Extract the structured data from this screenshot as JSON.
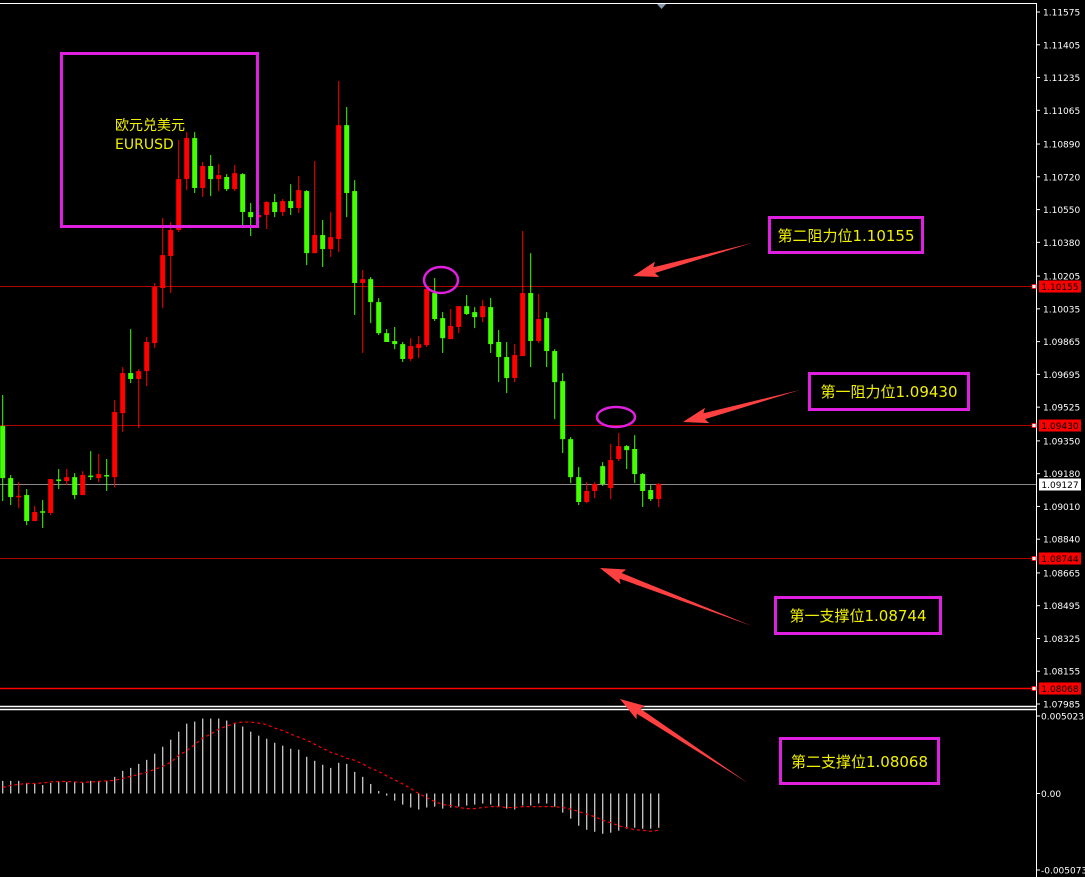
{
  "chart_data": {
    "type": "candlestick",
    "symbol_title": "欧元兑美元",
    "symbol": "EURUSD",
    "colors": {
      "up": "#ff0000",
      "down": "#44ff00",
      "background": "#000000",
      "annotation_box": "#e020e0",
      "annotation_text": "#f0f000",
      "arrow": "#ff4040",
      "macd_histogram": "#c8c8c8",
      "macd_signal": "#ff0000"
    },
    "ylim": [
      1.07985,
      1.11575
    ],
    "y_ticks": [
      "1.11575",
      "1.11405",
      "1.11235",
      "1.11065",
      "1.10890",
      "1.10720",
      "1.10550",
      "1.10380",
      "1.10205",
      "1.10035",
      "1.09865",
      "1.09695",
      "1.09525",
      "1.09350",
      "1.09180",
      "1.09010",
      "1.08840",
      "1.08665",
      "1.08495",
      "1.08325",
      "1.08155",
      "1.07985"
    ],
    "current_price": "1.09127",
    "levels": [
      {
        "price": "1.10155",
        "label": "第二阻力位1.10155"
      },
      {
        "price": "1.09430",
        "label": "第一阻力位1.09430"
      },
      {
        "price": "1.08744",
        "label": "第一支撑位1.08744"
      },
      {
        "price": "1.08068",
        "label": "第二支撑位1.08068"
      }
    ],
    "ohlc_fields": [
      "open",
      "high",
      "low",
      "close"
    ],
    "candles": [
      [
        1.09427,
        1.09588,
        1.09038,
        1.09157
      ],
      [
        1.09157,
        1.09173,
        1.09017,
        1.09059
      ],
      [
        1.09059,
        1.09136,
        1.09001,
        1.09065
      ],
      [
        1.09069,
        1.091,
        1.08913,
        1.08934
      ],
      [
        1.08934,
        1.09012,
        1.08934,
        1.08981
      ],
      [
        1.08985,
        1.09043,
        1.08898,
        1.08981
      ],
      [
        1.08976,
        1.09152,
        1.08965,
        1.09152
      ],
      [
        1.0915,
        1.09204,
        1.091,
        1.09147
      ],
      [
        1.09142,
        1.09204,
        1.09121,
        1.09162
      ],
      [
        1.09162,
        1.09183,
        1.09048,
        1.09069
      ],
      [
        1.09069,
        1.09193,
        1.09069,
        1.09173
      ],
      [
        1.0917,
        1.09297,
        1.09147,
        1.09168
      ],
      [
        1.09157,
        1.09282,
        1.09136,
        1.09178
      ],
      [
        1.09173,
        1.09256,
        1.0909,
        1.09168
      ],
      [
        1.09162,
        1.09562,
        1.0911,
        1.095
      ],
      [
        1.09494,
        1.09733,
        1.09396,
        1.09702
      ],
      [
        1.09702,
        1.0993,
        1.0965,
        1.09671
      ],
      [
        1.09671,
        1.09723,
        1.09417,
        1.09712
      ],
      [
        1.09712,
        1.09889,
        1.09634,
        1.09863
      ],
      [
        1.09857,
        1.10169,
        1.09832,
        1.10148
      ],
      [
        1.10143,
        1.10506,
        1.10039,
        1.10314
      ],
      [
        1.10309,
        1.10485,
        1.10117,
        1.10444
      ],
      [
        1.10444,
        1.10911,
        1.10433,
        1.10708
      ],
      [
        1.10708,
        1.10952,
        1.10651,
        1.10921
      ],
      [
        1.10921,
        1.10952,
        1.10636,
        1.10662
      ],
      [
        1.10662,
        1.10797,
        1.10615,
        1.10776
      ],
      [
        1.10776,
        1.10833,
        1.1062,
        1.10708
      ],
      [
        1.10708,
        1.10786,
        1.10646,
        1.10729
      ],
      [
        1.10719,
        1.10734,
        1.10646,
        1.10656
      ],
      [
        1.10656,
        1.10781,
        1.10646,
        1.10739
      ],
      [
        1.10734,
        1.10739,
        1.1047,
        1.10537
      ],
      [
        1.10537,
        1.10584,
        1.10413,
        1.10511
      ],
      [
        1.10511,
        1.10532,
        1.10511,
        1.10522
      ],
      [
        1.10522,
        1.10594,
        1.10449,
        1.10589
      ],
      [
        1.10589,
        1.10631,
        1.10511,
        1.10537
      ],
      [
        1.10537,
        1.10605,
        1.10516,
        1.10594
      ],
      [
        1.10594,
        1.10682,
        1.10522,
        1.10558
      ],
      [
        1.10558,
        1.10724,
        1.10532,
        1.10651
      ],
      [
        1.10646,
        1.10651,
        1.10262,
        1.10324
      ],
      [
        1.10324,
        1.10802,
        1.10324,
        1.10418
      ],
      [
        1.10418,
        1.10496,
        1.10252,
        1.10345
      ],
      [
        1.10345,
        1.10537,
        1.10304,
        1.10407
      ],
      [
        1.10397,
        1.11217,
        1.1033,
        1.10988
      ],
      [
        1.10988,
        1.11082,
        1.10511,
        1.10636
      ],
      [
        1.10646,
        1.10703,
        1.10003,
        1.10169
      ],
      [
        1.10169,
        1.10236,
        1.09806,
        1.10189
      ],
      [
        1.10189,
        1.102,
        1.09961,
        1.1007
      ],
      [
        1.1007,
        1.10091,
        1.09899,
        1.09909
      ],
      [
        1.09909,
        1.0993,
        1.09863,
        1.09863
      ],
      [
        1.09868,
        1.09941,
        1.09826,
        1.09852
      ],
      [
        1.09852,
        1.09863,
        1.09759,
        1.09775
      ],
      [
        1.09775,
        1.09883,
        1.09764,
        1.09842
      ],
      [
        1.09832,
        1.09894,
        1.0978,
        1.09852
      ],
      [
        1.09847,
        1.10138,
        1.09837,
        1.10138
      ],
      [
        1.10117,
        1.10195,
        1.09972,
        1.09982
      ],
      [
        1.09987,
        1.10018,
        1.09806,
        1.09883
      ],
      [
        1.09878,
        1.10034,
        1.09878,
        1.09946
      ],
      [
        1.09941,
        1.10049,
        1.09909,
        1.10049
      ],
      [
        1.10049,
        1.10107,
        1.10003,
        1.10008
      ],
      [
        1.10018,
        1.10044,
        1.09935,
        1.09992
      ],
      [
        1.09992,
        1.10081,
        1.09966,
        1.10049
      ],
      [
        1.10044,
        1.10091,
        1.09806,
        1.09852
      ],
      [
        1.09863,
        1.09925,
        1.09655,
        1.09785
      ],
      [
        1.09785,
        1.09863,
        1.09598,
        1.09676
      ],
      [
        1.09676,
        1.09852,
        1.09655,
        1.09795
      ],
      [
        1.0979,
        1.10439,
        1.0979,
        1.10117
      ],
      [
        1.10117,
        1.10324,
        1.09733,
        1.09868
      ],
      [
        1.09868,
        1.10112,
        1.09857,
        1.09982
      ],
      [
        1.09987,
        1.10018,
        1.09733,
        1.09816
      ],
      [
        1.09816,
        1.09826,
        1.09463,
        1.09655
      ],
      [
        1.0966,
        1.09702,
        1.09287,
        1.09359
      ],
      [
        1.09359,
        1.0937,
        1.09131,
        1.09162
      ],
      [
        1.09162,
        1.09214,
        1.09017,
        1.09033
      ],
      [
        1.09033,
        1.09136,
        1.09027,
        1.0909
      ],
      [
        1.0909,
        1.09136,
        1.09053,
        1.09126
      ],
      [
        1.09219,
        1.0924,
        1.09116,
        1.09126
      ],
      [
        1.09105,
        1.09334,
        1.09048,
        1.09251
      ],
      [
        1.09256,
        1.09391,
        1.09245,
        1.09323
      ],
      [
        1.09323,
        1.09328,
        1.09204,
        1.09302
      ],
      [
        1.09308,
        1.0938,
        1.09131,
        1.09178
      ],
      [
        1.09178,
        1.09183,
        1.09007,
        1.0909
      ],
      [
        1.09095,
        1.09121,
        1.09038,
        1.09048
      ],
      [
        1.09048,
        1.09131,
        1.09007,
        1.09127
      ]
    ],
    "macd": {
      "ylim": [
        -0.005073,
        0.005023
      ],
      "y_ticks": [
        "0.005023",
        "0.00",
        "-0.005073"
      ],
      "histogram": [
        0.00082,
        0.00082,
        0.00082,
        0.00068,
        0.00062,
        0.00055,
        0.00068,
        0.00075,
        0.00075,
        0.00075,
        0.00068,
        0.00082,
        0.00082,
        0.00082,
        0.00108,
        0.00147,
        0.00166,
        0.00192,
        0.00218,
        0.00258,
        0.00303,
        0.00349,
        0.00401,
        0.00453,
        0.00466,
        0.00486,
        0.00486,
        0.00486,
        0.00473,
        0.00453,
        0.00434,
        0.00401,
        0.00375,
        0.00355,
        0.00329,
        0.0031,
        0.0029,
        0.00284,
        0.00238,
        0.00212,
        0.00186,
        0.00166,
        0.00199,
        0.00192,
        0.0014,
        0.00108,
        0.00062,
        0.00016,
        -0.00014,
        -0.00046,
        -0.00072,
        -0.00091,
        -0.00104,
        -0.00091,
        -0.00085,
        -0.00098,
        -0.00091,
        -0.00085,
        -0.00078,
        -0.00072,
        -0.00065,
        -0.00072,
        -0.00085,
        -0.00098,
        -0.00104,
        -0.00078,
        -0.00078,
        -0.00065,
        -0.00065,
        -0.00085,
        -0.00124,
        -0.00163,
        -0.00209,
        -0.00235,
        -0.00248,
        -0.00261,
        -0.00254,
        -0.00241,
        -0.00228,
        -0.00222,
        -0.00228,
        -0.00228,
        -0.00222
      ],
      "signal": [
        0.00039,
        0.00052,
        0.00059,
        0.00065,
        0.00065,
        0.00068,
        0.00075,
        0.00078,
        0.00078,
        0.00075,
        0.00072,
        0.00075,
        0.00078,
        0.00082,
        0.00085,
        0.00098,
        0.00111,
        0.00124,
        0.00137,
        0.00156,
        0.00176,
        0.00202,
        0.00248,
        0.00277,
        0.00316,
        0.00359,
        0.00385,
        0.00417,
        0.00437,
        0.00456,
        0.00463,
        0.00463,
        0.00456,
        0.00447,
        0.00424,
        0.00408,
        0.00385,
        0.00365,
        0.00346,
        0.00319,
        0.00293,
        0.00267,
        0.00251,
        0.00228,
        0.00215,
        0.00192,
        0.00163,
        0.00143,
        0.00114,
        0.00088,
        0.00062,
        0.00033,
        0,
        -0.00026,
        -0.00052,
        -0.00072,
        -0.00078,
        -0.00091,
        -0.00098,
        -0.00098,
        -0.00091,
        -0.00085,
        -0.00085,
        -0.00091,
        -0.00091,
        -0.00085,
        -0.00085,
        -0.00085,
        -0.00085,
        -0.00085,
        -0.00091,
        -0.00101,
        -0.00117,
        -0.00134,
        -0.0015,
        -0.00173,
        -0.00189,
        -0.00209,
        -0.00222,
        -0.00235,
        -0.00238,
        -0.00245,
        -0.00238
      ]
    }
  }
}
